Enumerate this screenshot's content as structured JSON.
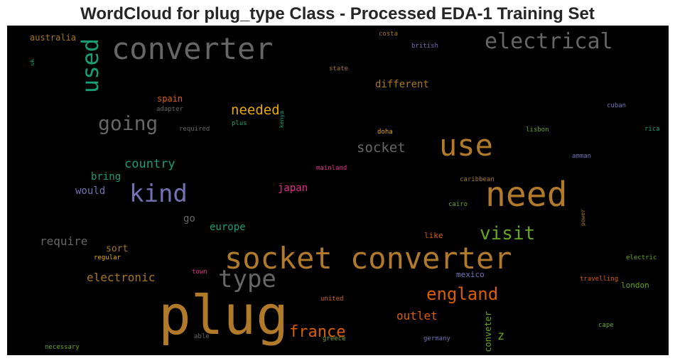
{
  "chart_data": {
    "type": "wordcloud",
    "title": "WordCloud for plug_type Class - Processed EDA-1 Training Set",
    "background": "#000000",
    "words": [
      {
        "text": "plug",
        "color": "#b07a2a"
      },
      {
        "text": "socket converter",
        "color": "#b07a2a"
      },
      {
        "text": "need",
        "color": "#b07a2a"
      },
      {
        "text": "use",
        "color": "#b07a2a"
      },
      {
        "text": "converter",
        "color": "#666666"
      },
      {
        "text": "kind",
        "color": "#7570b3"
      },
      {
        "text": "type",
        "color": "#666666"
      },
      {
        "text": "electrical",
        "color": "#666666"
      },
      {
        "text": "used",
        "color": "#1b9e77"
      },
      {
        "text": "going",
        "color": "#666666"
      },
      {
        "text": "visit",
        "color": "#66a61e"
      },
      {
        "text": "england",
        "color": "#d95f02"
      },
      {
        "text": "france",
        "color": "#d95f02"
      },
      {
        "text": "needed",
        "color": "#e6ab02"
      },
      {
        "text": "socket",
        "color": "#666666"
      },
      {
        "text": "country",
        "color": "#1b9e77"
      },
      {
        "text": "outlet",
        "color": "#d95f02"
      },
      {
        "text": "electronic",
        "color": "#a6761d"
      },
      {
        "text": "require",
        "color": "#666666"
      },
      {
        "text": "different",
        "color": "#a6761d"
      },
      {
        "text": "europe",
        "color": "#1b9e77"
      },
      {
        "text": "bring",
        "color": "#1b9e77"
      },
      {
        "text": "would",
        "color": "#7570b3"
      },
      {
        "text": "japan",
        "color": "#e7298a"
      },
      {
        "text": "go",
        "color": "#666666"
      },
      {
        "text": "sort",
        "color": "#a6761d"
      },
      {
        "text": "z",
        "color": "#66a61e"
      },
      {
        "text": "conveter",
        "color": "#66a61e"
      },
      {
        "text": "spain",
        "color": "#d95f02"
      },
      {
        "text": "australia",
        "color": "#a6761d"
      },
      {
        "text": "london",
        "color": "#66a61e"
      },
      {
        "text": "like",
        "color": "#d95f02"
      },
      {
        "text": "mexico",
        "color": "#7570b3"
      },
      {
        "text": "adapter",
        "color": "#666666"
      },
      {
        "text": "required",
        "color": "#666666"
      },
      {
        "text": "plus",
        "color": "#1b9e77"
      },
      {
        "text": "kenya",
        "color": "#1b9e77"
      },
      {
        "text": "doha",
        "color": "#e6ab02"
      },
      {
        "text": "lisbon",
        "color": "#66a61e"
      },
      {
        "text": "rica",
        "color": "#1b9e77"
      },
      {
        "text": "cuban",
        "color": "#7570b3"
      },
      {
        "text": "amman",
        "color": "#7570b3"
      },
      {
        "text": "mainland",
        "color": "#e7298a"
      },
      {
        "text": "caribbean",
        "color": "#a6761d"
      },
      {
        "text": "cairo",
        "color": "#66a61e"
      },
      {
        "text": "power",
        "color": "#a6761d"
      },
      {
        "text": "electric",
        "color": "#66a61e"
      },
      {
        "text": "travelling",
        "color": "#d95f02"
      },
      {
        "text": "regular",
        "color": "#e6ab02"
      },
      {
        "text": "town",
        "color": "#e7298a"
      },
      {
        "text": "united",
        "color": "#d95f02"
      },
      {
        "text": "cape",
        "color": "#66a61e"
      },
      {
        "text": "able",
        "color": "#666666"
      },
      {
        "text": "greece",
        "color": "#66a61e"
      },
      {
        "text": "germany",
        "color": "#7570b3"
      },
      {
        "text": "necessary",
        "color": "#66a61e"
      },
      {
        "text": "costa",
        "color": "#a6761d"
      },
      {
        "text": "british",
        "color": "#7570b3"
      },
      {
        "text": "state",
        "color": "#a6761d"
      },
      {
        "text": "uk",
        "color": "#1b9e77"
      }
    ]
  }
}
